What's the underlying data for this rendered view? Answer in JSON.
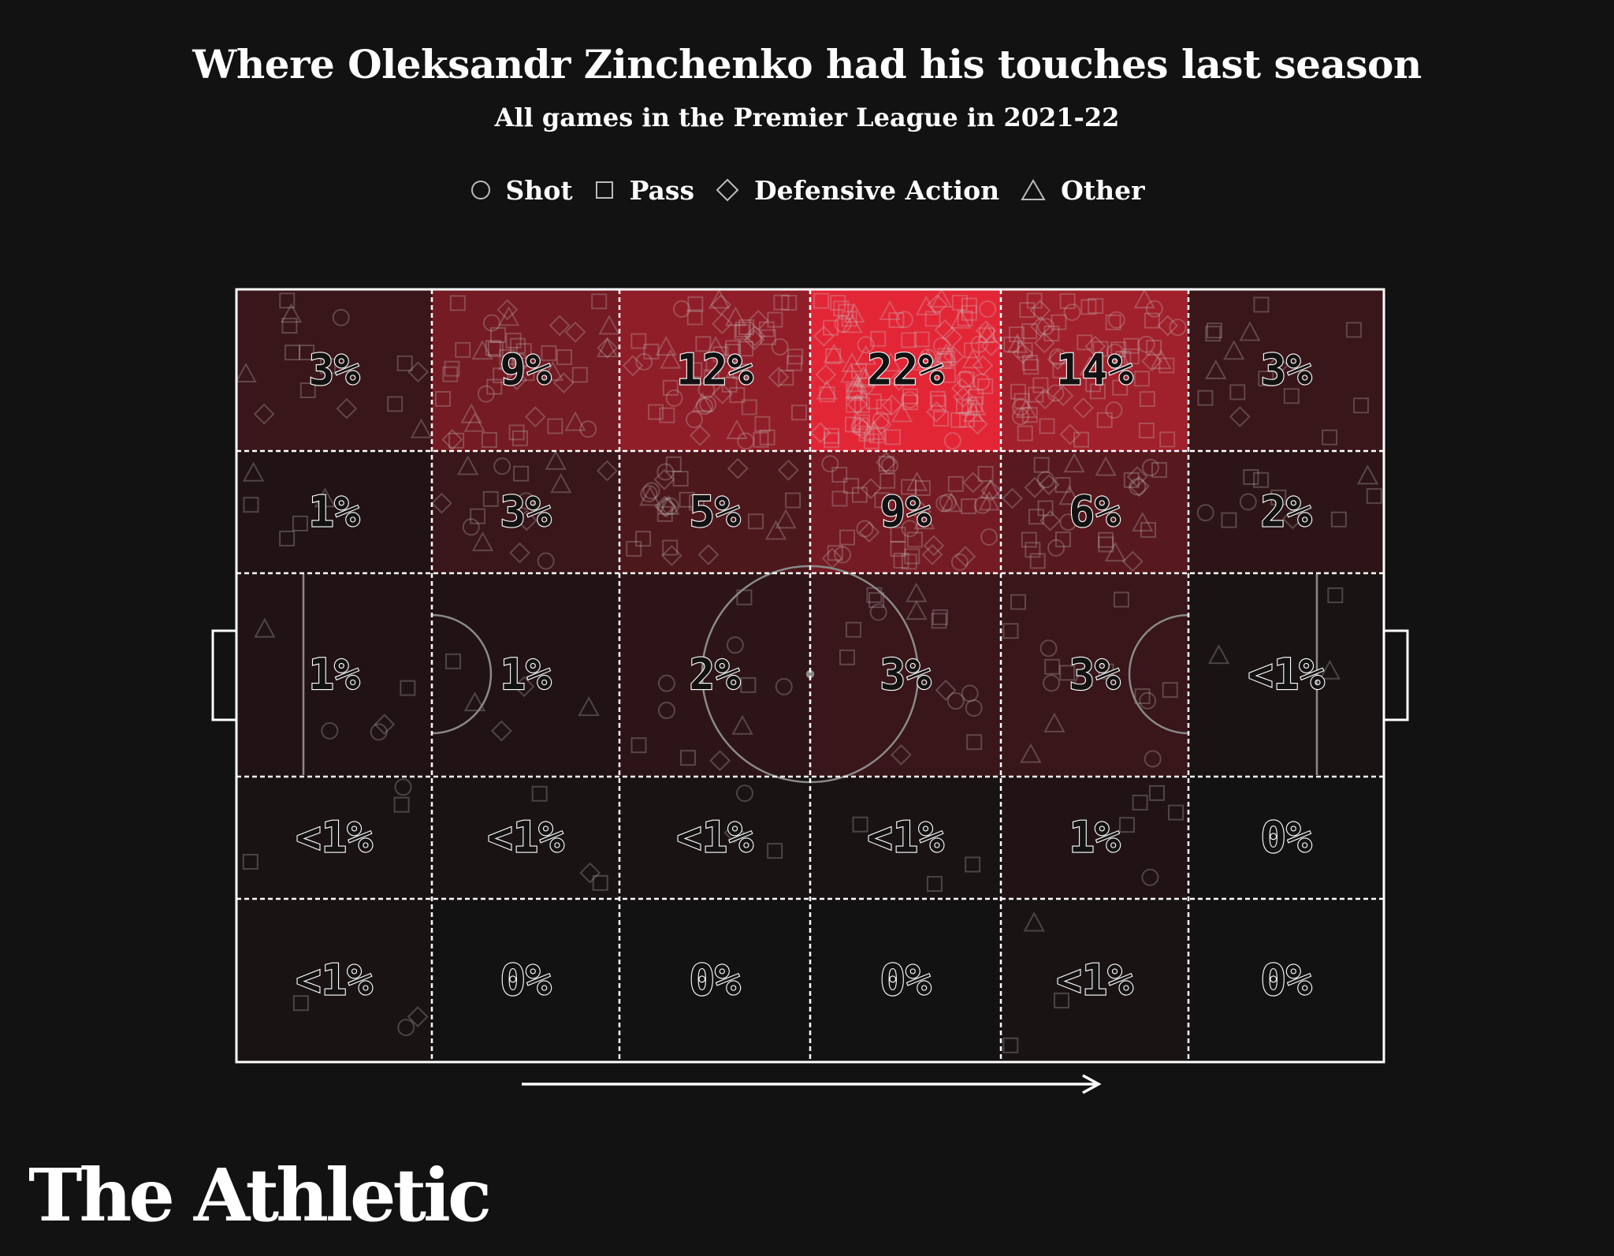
{
  "title": "Where Oleksandr Zinchenko had his touches last season",
  "subtitle": "All games in the Premier League in 2021-22",
  "legend": [
    {
      "label": "Shot",
      "shape": "circle"
    },
    {
      "label": "Pass",
      "shape": "square"
    },
    {
      "label": "Defensive Action",
      "shape": "diamond"
    },
    {
      "label": "Other",
      "shape": "triangle"
    }
  ],
  "brand": "The Athletic",
  "colors": {
    "background": "#121212",
    "heat_max": "#e32636",
    "heat_min": "#121212",
    "lines": "#ffffff"
  },
  "chart_data": {
    "type": "heatmap",
    "columns": 6,
    "rows": 5,
    "attack_direction": "left-to-right",
    "cells": [
      [
        {
          "label": "3%",
          "value": 3
        },
        {
          "label": "9%",
          "value": 9
        },
        {
          "label": "12%",
          "value": 12
        },
        {
          "label": "22%",
          "value": 22
        },
        {
          "label": "14%",
          "value": 14
        },
        {
          "label": "3%",
          "value": 3
        }
      ],
      [
        {
          "label": "1%",
          "value": 1
        },
        {
          "label": "3%",
          "value": 3
        },
        {
          "label": "5%",
          "value": 5
        },
        {
          "label": "9%",
          "value": 9
        },
        {
          "label": "6%",
          "value": 6
        },
        {
          "label": "2%",
          "value": 2
        }
      ],
      [
        {
          "label": "1%",
          "value": 1
        },
        {
          "label": "1%",
          "value": 1
        },
        {
          "label": "2%",
          "value": 2
        },
        {
          "label": "3%",
          "value": 3
        },
        {
          "label": "3%",
          "value": 3
        },
        {
          "label": "<1%",
          "value": 0.5
        }
      ],
      [
        {
          "label": "<1%",
          "value": 0.5
        },
        {
          "label": "<1%",
          "value": 0.5
        },
        {
          "label": "<1%",
          "value": 0.5
        },
        {
          "label": "<1%",
          "value": 0.5
        },
        {
          "label": "1%",
          "value": 1
        },
        {
          "label": "0%",
          "value": 0
        }
      ],
      [
        {
          "label": "<1%",
          "value": 0.5
        },
        {
          "label": "0%",
          "value": 0
        },
        {
          "label": "0%",
          "value": 0
        },
        {
          "label": "0%",
          "value": 0
        },
        {
          "label": "<1%",
          "value": 0.5
        },
        {
          "label": "0%",
          "value": 0
        }
      ]
    ]
  }
}
